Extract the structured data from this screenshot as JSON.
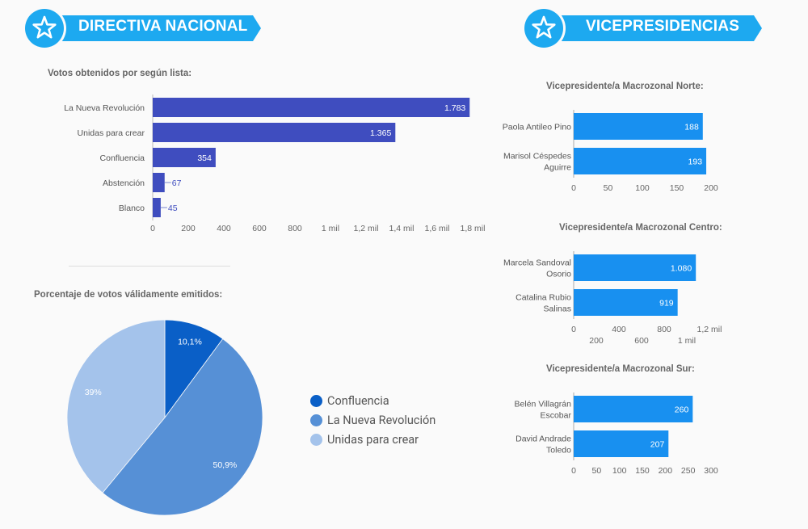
{
  "banners": {
    "left": {
      "title": "DIRECTIVA NACIONAL",
      "icon": "star-icon"
    },
    "right": {
      "title": "VICEPRESIDENCIAS",
      "icon": "star-icon"
    }
  },
  "colors": {
    "banner": "#1da9f0",
    "bar_main": "#3f4dbf",
    "bar_vice": "#1890f0",
    "pie": [
      "#0a5fc7",
      "#5690d6",
      "#a4c3eb"
    ]
  },
  "chart_data": [
    {
      "id": "votos-lista",
      "type": "bar",
      "orientation": "horizontal",
      "title": "Votos obtenidos por según lista:",
      "categories": [
        "La Nueva Revolución",
        "Unidas para crear",
        "Confluencia",
        "Abstención",
        "Blanco"
      ],
      "values": [
        1783,
        1365,
        354,
        67,
        45
      ],
      "value_labels": [
        "1.783",
        "1.365",
        "354",
        "67",
        "45"
      ],
      "xlim": [
        0,
        1800
      ],
      "ticks": [
        0,
        200,
        400,
        600,
        800,
        1000,
        1200,
        1400,
        1600,
        1800
      ],
      "tick_labels": [
        "0",
        "200",
        "400",
        "600",
        "800",
        "1 mil",
        "1,2 mil",
        "1,4 mil",
        "1,6 mil",
        "1,8 mil"
      ],
      "grid": false
    },
    {
      "id": "porcentaje-validos",
      "type": "pie",
      "title": "Porcentaje de votos válidamente emitidos:",
      "labels": [
        "Confluencia",
        "La Nueva Revolución",
        "Unidas para crear"
      ],
      "values": [
        10.1,
        50.9,
        39
      ],
      "value_labels": [
        "10,1%",
        "50,9%",
        "39%"
      ],
      "legend": "right"
    },
    {
      "id": "vice-norte",
      "type": "bar",
      "orientation": "horizontal",
      "title": "Vicepresidente/a Macrozonal Norte:",
      "categories": [
        [
          "Paola Antileo Pino"
        ],
        [
          "Marisol Céspedes",
          "Aguirre"
        ]
      ],
      "values": [
        188,
        193
      ],
      "value_labels": [
        "188",
        "193"
      ],
      "xlim": [
        0,
        200
      ],
      "ticks": [
        0,
        50,
        100,
        150,
        200
      ],
      "tick_labels": [
        "0",
        "50",
        "100",
        "150",
        "200"
      ],
      "grid": false
    },
    {
      "id": "vice-centro",
      "type": "bar",
      "orientation": "horizontal",
      "title": "Vicepresidente/a Macrozonal Centro:",
      "categories": [
        [
          "Marcela Sandoval",
          "Osorio"
        ],
        [
          "Catalina Rubio",
          "Salinas"
        ]
      ],
      "values": [
        1080,
        919
      ],
      "value_labels": [
        "1.080",
        "919"
      ],
      "xlim": [
        0,
        1200
      ],
      "ticks": [
        0,
        200,
        400,
        600,
        800,
        1000,
        1200
      ],
      "tick_labels": [
        "0",
        "200",
        "400",
        "600",
        "800",
        "1 mil",
        "1,2 mil"
      ],
      "grid": false
    },
    {
      "id": "vice-sur",
      "type": "bar",
      "orientation": "horizontal",
      "title": "Vicepresidente/a Macrozonal Sur:",
      "categories": [
        [
          "Belén Villagrán",
          "Escobar"
        ],
        [
          "David Andrade",
          "Toledo"
        ]
      ],
      "values": [
        260,
        207
      ],
      "value_labels": [
        "260",
        "207"
      ],
      "xlim": [
        0,
        300
      ],
      "ticks": [
        0,
        50,
        100,
        150,
        200,
        250,
        300
      ],
      "tick_labels": [
        "0",
        "50",
        "100",
        "150",
        "200",
        "250",
        "300"
      ],
      "grid": false
    }
  ]
}
